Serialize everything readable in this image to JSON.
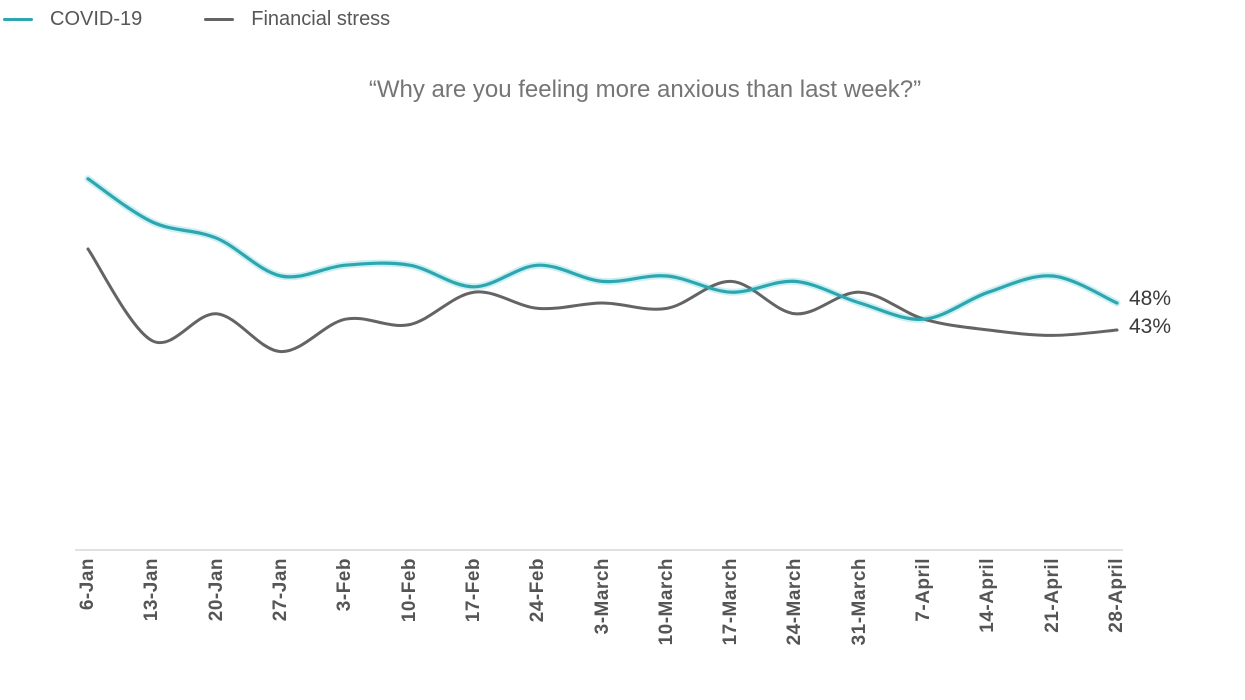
{
  "title": "“Why are you feeling more anxious than last week?”",
  "legend": {
    "position": "top-left",
    "items": [
      {
        "label": "COVID-19",
        "color": "#2da6b0"
      },
      {
        "label": "Financial stress",
        "color": "#646464"
      }
    ]
  },
  "chart_data": {
    "type": "line",
    "smoothed": true,
    "unit": "%",
    "title": "“Why are you feeling more anxious than last week?”",
    "categories": [
      "6-Jan",
      "13-Jan",
      "20-Jan",
      "27-Jan",
      "3-Feb",
      "10-Feb",
      "17-Feb",
      "24-Feb",
      "3-March",
      "10-March",
      "17-March",
      "24-March",
      "31-March",
      "7-April",
      "14-April",
      "21-April",
      "28-April"
    ],
    "series": [
      {
        "name": "COVID-19",
        "color": "#2da6b0",
        "values": [
          71,
          63,
          60,
          53,
          55,
          55,
          51,
          55,
          52,
          53,
          50,
          52,
          48,
          45,
          50,
          53,
          48
        ],
        "end_label": "48%"
      },
      {
        "name": "Financial stress",
        "color": "#646464",
        "values": [
          58,
          41,
          46,
          39,
          45,
          44,
          50,
          47,
          48,
          47,
          52,
          46,
          50,
          45,
          43,
          42,
          43
        ],
        "end_label": "43%"
      }
    ],
    "x_axis": {
      "line_visible": true,
      "line_color": "#d7d7d7",
      "labels_rotated_degrees": -90
    },
    "y_axis": {
      "visible": false,
      "approx_range": [
        35,
        75
      ]
    },
    "grid": "off",
    "legend_position": "top-left"
  }
}
